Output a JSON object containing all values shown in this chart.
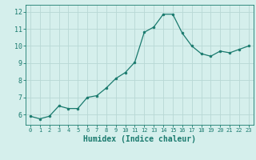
{
  "x": [
    0,
    1,
    2,
    3,
    4,
    5,
    6,
    7,
    8,
    9,
    10,
    11,
    12,
    13,
    14,
    15,
    16,
    17,
    18,
    19,
    20,
    21,
    22,
    23
  ],
  "y": [
    5.9,
    5.75,
    5.9,
    6.5,
    6.35,
    6.35,
    7.0,
    7.1,
    7.55,
    8.1,
    8.45,
    9.05,
    10.8,
    11.1,
    11.85,
    11.85,
    10.75,
    10.0,
    9.55,
    9.4,
    9.7,
    9.6,
    9.8,
    10.0
  ],
  "line_color": "#1a7a6e",
  "marker": "o",
  "marker_size": 2,
  "bg_color": "#d5efec",
  "grid_color": "#b8d8d5",
  "tick_color": "#1a7a6e",
  "xlabel": "Humidex (Indice chaleur)",
  "xlabel_fontsize": 7,
  "ylabel_ticks": [
    6,
    7,
    8,
    9,
    10,
    11,
    12
  ],
  "xtick_fontsize": 5,
  "ytick_fontsize": 6,
  "xlim": [
    -0.5,
    23.5
  ],
  "ylim": [
    5.4,
    12.4
  ]
}
